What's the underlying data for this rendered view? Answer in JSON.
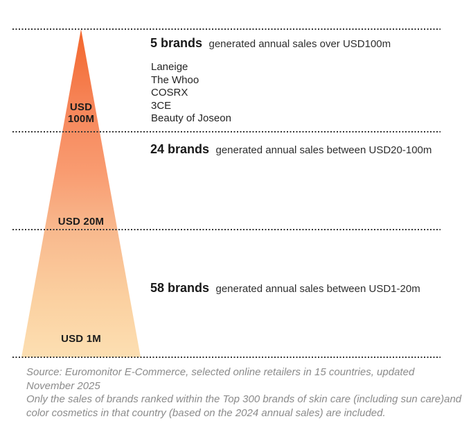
{
  "chart_data": {
    "type": "funnel",
    "shape": "pyramid",
    "title": "",
    "unit": "annual online sales, USD",
    "thresholds": [
      "USD 1M",
      "USD 20M",
      "USD 100M"
    ],
    "tiers": [
      {
        "count": "5 brands",
        "value": 5,
        "description": "generated annual sales over USD100m",
        "range": "over USD100m",
        "axis_lines": [
          "USD",
          "100M"
        ],
        "brands": [
          "Laneige",
          "The Whoo",
          "COSRX",
          "3CE",
          "Beauty of Joseon"
        ]
      },
      {
        "count": "24 brands",
        "value": 24,
        "description": "generated annual sales between USD20-100m",
        "range": "USD20-100m",
        "axis_lines": [
          "USD 20M"
        ]
      },
      {
        "count": "58 brands",
        "value": 58,
        "description": "generated annual sales between USD1-20m",
        "range": "USD1-20m",
        "axis_lines": [
          "USD 1M"
        ]
      }
    ],
    "colors": {
      "pyramid_gradient_top": "#f3662c",
      "pyramid_gradient_bottom": "#fcdfb2",
      "divider_dots": "#333333",
      "heading_text": "#1f1f1f",
      "footnote_text": "#8b8b8b"
    },
    "layout": {
      "legend": "none",
      "grid": "dotted horizontal tier dividers",
      "background": "#ffffff"
    }
  },
  "footer": {
    "lines": [
      "Source: Euromonitor E-Commerce, selected online retailers in 15 countries, updated",
      "November 2025",
      "Only the sales of brands ranked within the Top 300 brands of skin care (including sun care)and",
      "color cosmetics in that country (based on the 2024 annual sales) are included."
    ]
  }
}
